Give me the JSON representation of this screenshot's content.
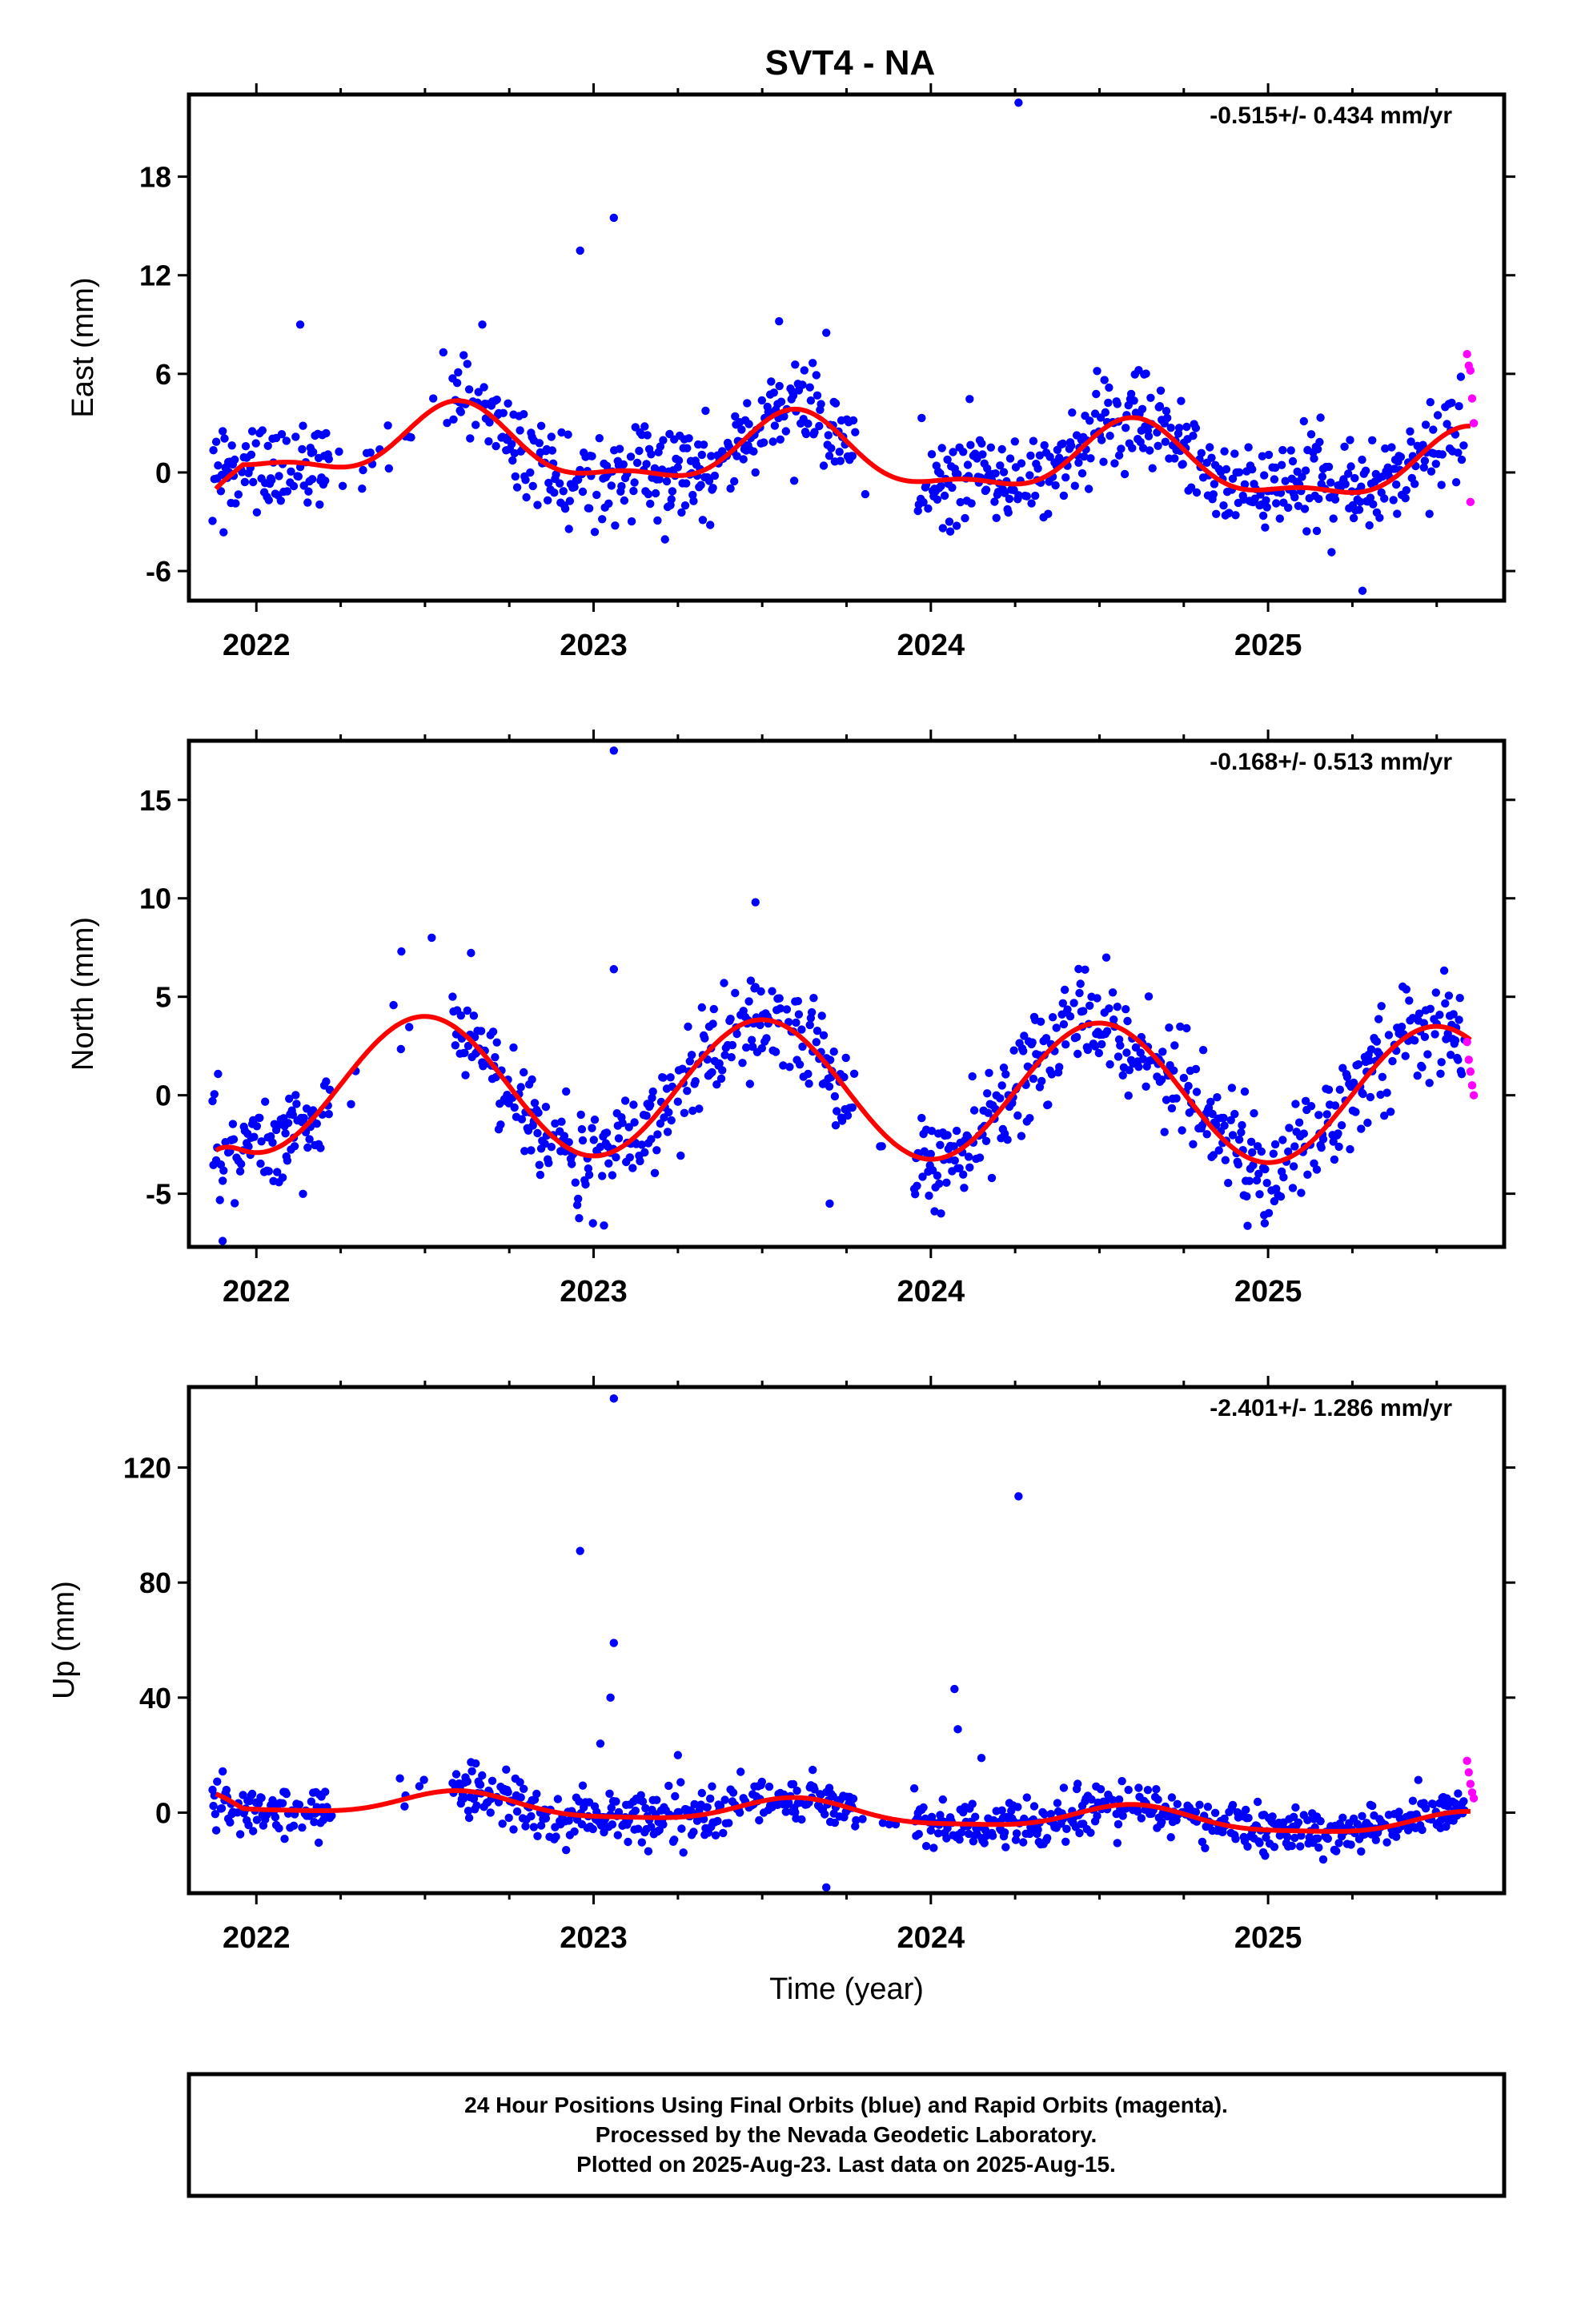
{
  "title": "SVT4 - NA",
  "footer": {
    "lines": [
      "24 Hour Positions Using Final Orbits (blue) and Rapid Orbits (magenta).",
      "Processed by the Nevada Geodetic Laboratory.",
      "Plotted on 2025-Aug-23. Last data on 2025-Aug-15."
    ]
  },
  "colors": {
    "final_orbits": "#0000ff",
    "rapid_orbits": "#ff00ff",
    "model_fit": "#ff0000",
    "frame": "#000000"
  },
  "chart_data": [
    {
      "type": "scatter",
      "ylabel": "East (mm)",
      "xlabel": "",
      "annotation": "-0.515+/- 0.434 mm/yr",
      "annotation_position": "top-right",
      "xlim": [
        2021.8,
        2025.7
      ],
      "ylim": [
        -7.8,
        23
      ],
      "yticks": [
        -6,
        0,
        6,
        12,
        18
      ],
      "xticks": [
        2022,
        2023,
        2024,
        2025
      ],
      "fit": {
        "mean": 1.0,
        "trend": -0.515,
        "annual_amp": 2.0,
        "annual_peak": 0.6,
        "semi_amp": 0.8,
        "semi_peak": 0.1,
        "start_value": -1.0
      },
      "scatter_sigma": 1.4,
      "outliers": [
        {
          "x": 2022.96,
          "y": 13.5
        },
        {
          "x": 2023.06,
          "y": 15.5
        },
        {
          "x": 2024.26,
          "y": 22.5
        },
        {
          "x": 2022.13,
          "y": 9.0
        },
        {
          "x": 2022.67,
          "y": 9.0
        },
        {
          "x": 2023.55,
          "y": 9.2
        },
        {
          "x": 2023.69,
          "y": 8.5
        },
        {
          "x": 2025.28,
          "y": -7.2
        }
      ],
      "rapid": [
        {
          "x": 2025.59,
          "y": 7.2
        },
        {
          "x": 2025.595,
          "y": 6.5
        },
        {
          "x": 2025.6,
          "y": 6.2
        },
        {
          "x": 2025.605,
          "y": 4.5
        },
        {
          "x": 2025.61,
          "y": 3.0
        },
        {
          "x": 2025.6,
          "y": -1.8
        }
      ]
    },
    {
      "type": "scatter",
      "ylabel": "North (mm)",
      "xlabel": "",
      "annotation": "-0.168+/- 0.513 mm/yr",
      "annotation_position": "top-right",
      "xlim": [
        2021.8,
        2025.7
      ],
      "ylim": [
        -7.7,
        18
      ],
      "yticks": [
        -5,
        0,
        5,
        10,
        15
      ],
      "xticks": [
        2022,
        2023,
        2024,
        2025
      ],
      "fit": {
        "mean": 0.3,
        "trend": -0.168,
        "annual_amp": 3.5,
        "annual_peak": 0.5,
        "semi_amp": 0.0,
        "semi_peak": 0.0,
        "start_value": -2.8
      },
      "scatter_sigma": 1.3,
      "outliers": [
        {
          "x": 2023.06,
          "y": 17.5
        },
        {
          "x": 2023.06,
          "y": 6.4
        },
        {
          "x": 2023.48,
          "y": 9.8
        },
        {
          "x": 2022.52,
          "y": 8.0
        },
        {
          "x": 2022.43,
          "y": 7.3
        },
        {
          "x": 2021.9,
          "y": -7.4
        },
        {
          "x": 2023.7,
          "y": -5.5
        },
        {
          "x": 2024.99,
          "y": -6.5
        }
      ],
      "rapid": [
        {
          "x": 2025.59,
          "y": 2.7
        },
        {
          "x": 2025.595,
          "y": 1.8
        },
        {
          "x": 2025.6,
          "y": 1.2
        },
        {
          "x": 2025.605,
          "y": 0.5
        },
        {
          "x": 2025.61,
          "y": 0.0
        }
      ]
    },
    {
      "type": "scatter",
      "ylabel": "Up (mm)",
      "xlabel": "Time (year)",
      "annotation": "-2.401+/- 1.286 mm/yr",
      "annotation_position": "top-right",
      "xlim": [
        2021.8,
        2025.7
      ],
      "ylim": [
        -28,
        148
      ],
      "yticks": [
        0,
        40,
        80,
        120
      ],
      "xticks": [
        2022,
        2023,
        2024,
        2025
      ],
      "fit": {
        "mean": 0.0,
        "trend": -2.401,
        "annual_amp": 4.0,
        "annual_peak": 0.6,
        "semi_amp": 1.0,
        "semi_peak": 0.1,
        "start_value": 6.5
      },
      "scatter_sigma": 4.2,
      "outliers": [
        {
          "x": 2023.06,
          "y": 144
        },
        {
          "x": 2022.96,
          "y": 91
        },
        {
          "x": 2024.26,
          "y": 110
        },
        {
          "x": 2023.06,
          "y": 59
        },
        {
          "x": 2023.05,
          "y": 40
        },
        {
          "x": 2024.07,
          "y": 43
        },
        {
          "x": 2024.08,
          "y": 29
        },
        {
          "x": 2023.69,
          "y": -26
        },
        {
          "x": 2023.02,
          "y": 24
        },
        {
          "x": 2023.25,
          "y": 20
        },
        {
          "x": 2024.15,
          "y": 19
        }
      ],
      "rapid": [
        {
          "x": 2025.59,
          "y": 18
        },
        {
          "x": 2025.595,
          "y": 14
        },
        {
          "x": 2025.6,
          "y": 10
        },
        {
          "x": 2025.605,
          "y": 7
        },
        {
          "x": 2025.61,
          "y": 5
        }
      ]
    }
  ]
}
